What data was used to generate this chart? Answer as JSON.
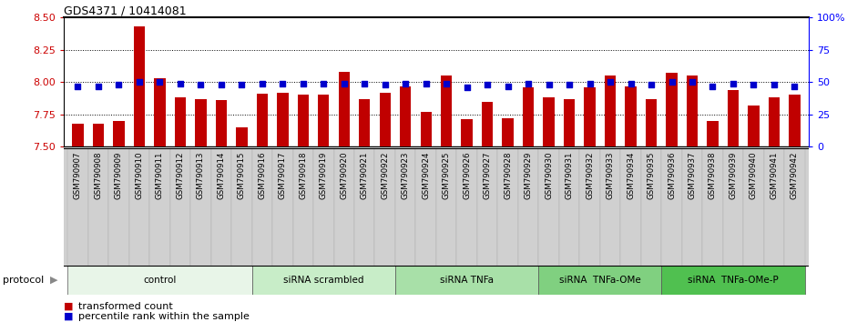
{
  "title": "GDS4371 / 10414081",
  "samples": [
    "GSM790907",
    "GSM790908",
    "GSM790909",
    "GSM790910",
    "GSM790911",
    "GSM790912",
    "GSM790913",
    "GSM790914",
    "GSM790915",
    "GSM790916",
    "GSM790917",
    "GSM790918",
    "GSM790919",
    "GSM790920",
    "GSM790921",
    "GSM790922",
    "GSM790923",
    "GSM790924",
    "GSM790925",
    "GSM790926",
    "GSM790927",
    "GSM790928",
    "GSM790929",
    "GSM790930",
    "GSM790931",
    "GSM790932",
    "GSM790933",
    "GSM790934",
    "GSM790935",
    "GSM790936",
    "GSM790937",
    "GSM790938",
    "GSM790939",
    "GSM790940",
    "GSM790941",
    "GSM790942"
  ],
  "bar_values": [
    7.68,
    7.68,
    7.7,
    8.43,
    8.03,
    7.88,
    7.87,
    7.86,
    7.65,
    7.91,
    7.92,
    7.9,
    7.9,
    8.08,
    7.87,
    7.92,
    7.97,
    7.77,
    8.05,
    7.71,
    7.85,
    7.72,
    7.96,
    7.88,
    7.87,
    7.96,
    8.05,
    7.97,
    7.87,
    8.07,
    8.05,
    7.7,
    7.94,
    7.82,
    7.88,
    7.9
  ],
  "percentile_values": [
    47,
    47,
    48,
    50,
    50,
    49,
    48,
    48,
    48,
    49,
    49,
    49,
    49,
    49,
    49,
    48,
    49,
    49,
    49,
    46,
    48,
    47,
    49,
    48,
    48,
    49,
    50,
    49,
    48,
    50,
    50,
    47,
    49,
    48,
    48,
    47
  ],
  "groups": [
    {
      "label": "control",
      "start": 0,
      "end": 9,
      "color": "#e8f5e8"
    },
    {
      "label": "siRNA scrambled",
      "start": 9,
      "end": 16,
      "color": "#c8edc8"
    },
    {
      "label": "siRNA TNFa",
      "start": 16,
      "end": 23,
      "color": "#a8e0a8"
    },
    {
      "label": "siRNA  TNFa-OMe",
      "start": 23,
      "end": 29,
      "color": "#80d080"
    },
    {
      "label": "siRNA  TNFa-OMe-P",
      "start": 29,
      "end": 36,
      "color": "#50c050"
    }
  ],
  "bar_color": "#c00000",
  "dot_color": "#0000cc",
  "ylim_left": [
    7.5,
    8.5
  ],
  "ylim_right": [
    0,
    100
  ],
  "yticks_left": [
    7.5,
    7.75,
    8.0,
    8.25,
    8.5
  ],
  "ytick_labels_right": [
    "0",
    "25",
    "50",
    "75",
    "100%"
  ],
  "grid_values": [
    7.75,
    8.0,
    8.25
  ],
  "tick_bg_color": "#d0d0d0",
  "legend_transformed": "transformed count",
  "legend_percentile": "percentile rank within the sample",
  "protocol_label": "protocol"
}
